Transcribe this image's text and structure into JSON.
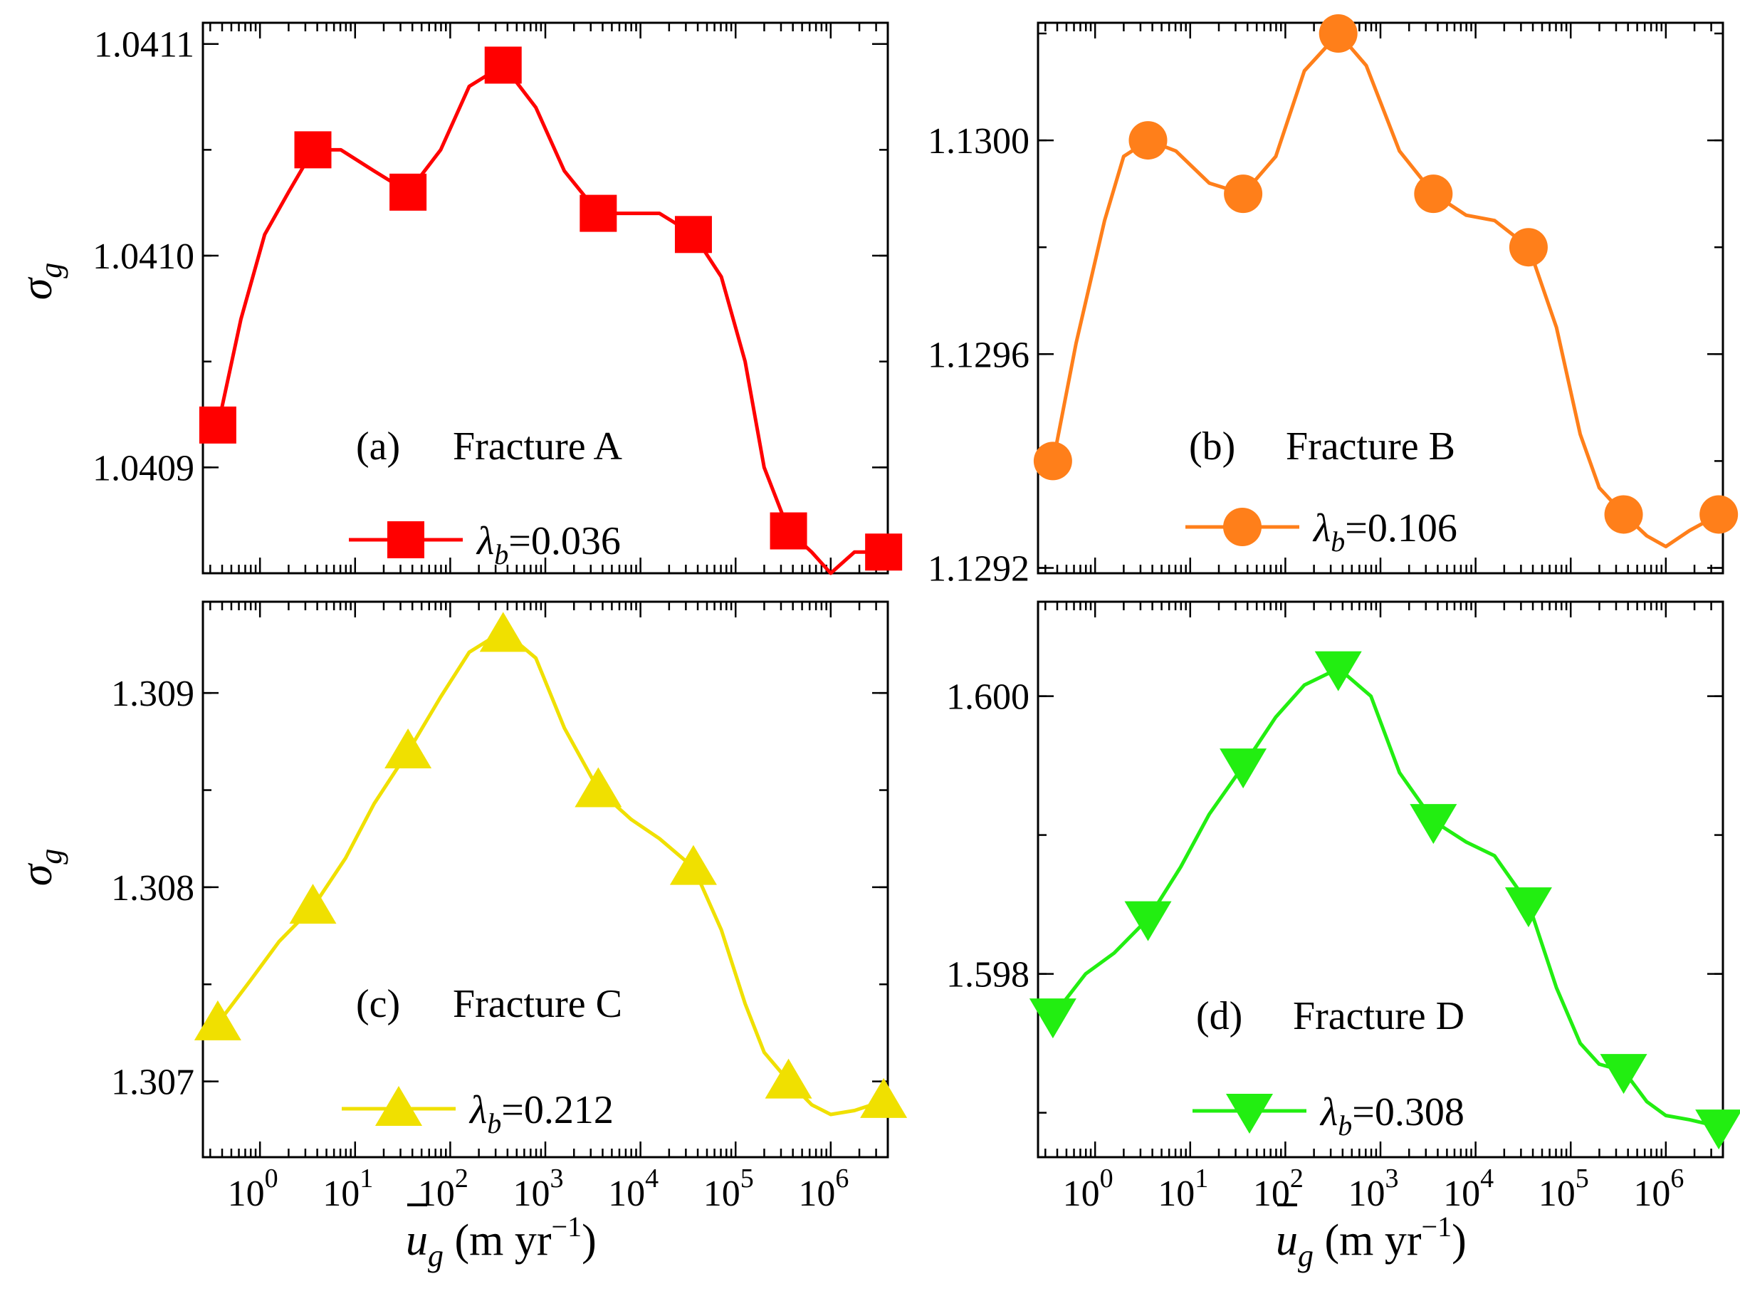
{
  "figure": {
    "shared_xlabel": {
      "prefix": "u",
      "subscript": "g",
      "unit": " (m yr",
      "exponent": "−1",
      "suffix": ")"
    },
    "shared_ylabel": {
      "symbol": "σ",
      "subscript": "g"
    }
  },
  "chart_data": [
    {
      "type": "line",
      "panel": "a",
      "panel_label": "(a)",
      "fracture": "Fracture A",
      "legend_value": "=0.036",
      "color": "#ff0000",
      "marker": "square",
      "xscale": "log",
      "xlim_exp": [
        -0.6,
        6.6
      ],
      "ylim": [
        1.04085,
        1.04111
      ],
      "yticks": [
        "1.0409",
        "1.0410",
        "1.0411"
      ],
      "ytick_values": [
        1.0409,
        1.041,
        1.0411
      ],
      "xlabel": "u_g (m yr^-1)",
      "ylabel": "σ_g",
      "x": [
        0.36,
        3.6,
        36,
        360,
        3600,
        36000,
        360000,
        3600000
      ],
      "y": [
        1.04092,
        1.04105,
        1.04103,
        1.04109,
        1.04102,
        1.04101,
        1.04087,
        1.04086
      ],
      "curve": [
        [
          -0.44,
          1.04092
        ],
        [
          -0.2,
          1.04097
        ],
        [
          0.05,
          1.04101
        ],
        [
          0.3,
          1.04103
        ],
        [
          0.56,
          1.04105
        ],
        [
          0.85,
          1.04105
        ],
        [
          1.2,
          1.04104
        ],
        [
          1.56,
          1.04103
        ],
        [
          1.9,
          1.04105
        ],
        [
          2.2,
          1.04108
        ],
        [
          2.56,
          1.04109
        ],
        [
          2.9,
          1.04107
        ],
        [
          3.2,
          1.04104
        ],
        [
          3.56,
          1.04102
        ],
        [
          3.9,
          1.04102
        ],
        [
          4.2,
          1.04102
        ],
        [
          4.56,
          1.04101
        ],
        [
          4.85,
          1.04099
        ],
        [
          5.1,
          1.04095
        ],
        [
          5.3,
          1.0409
        ],
        [
          5.56,
          1.04087
        ],
        [
          5.8,
          1.04086
        ],
        [
          6.0,
          1.04085
        ],
        [
          6.25,
          1.04086
        ],
        [
          6.56,
          1.04086
        ]
      ]
    },
    {
      "type": "line",
      "panel": "b",
      "panel_label": "(b)",
      "fracture": "Fracture B",
      "legend_value": "=0.106",
      "color": "#ff7f1a",
      "marker": "circle",
      "xscale": "log",
      "xlim_exp": [
        -0.6,
        6.6
      ],
      "ylim": [
        1.12919,
        1.13022
      ],
      "yticks": [
        "1.1292",
        "1.1296",
        "1.1300"
      ],
      "ytick_values": [
        1.1292,
        1.1296,
        1.13
      ],
      "xlabel": "u_g (m yr^-1)",
      "ylabel": "σ_g",
      "x": [
        0.36,
        3.6,
        36,
        360,
        3600,
        36000,
        360000,
        3600000
      ],
      "y": [
        1.1294,
        1.13,
        1.1299,
        1.1302,
        1.1299,
        1.1298,
        1.1293,
        1.1293
      ],
      "curve": [
        [
          -0.44,
          1.1294
        ],
        [
          -0.2,
          1.12962
        ],
        [
          0.1,
          1.12985
        ],
        [
          0.3,
          1.12997
        ],
        [
          0.56,
          1.13
        ],
        [
          0.85,
          1.12998
        ],
        [
          1.2,
          1.12992
        ],
        [
          1.56,
          1.1299
        ],
        [
          1.9,
          1.12997
        ],
        [
          2.2,
          1.13013
        ],
        [
          2.56,
          1.1302
        ],
        [
          2.85,
          1.13014
        ],
        [
          3.2,
          1.12998
        ],
        [
          3.56,
          1.1299
        ],
        [
          3.9,
          1.12986
        ],
        [
          4.2,
          1.12985
        ],
        [
          4.56,
          1.1298
        ],
        [
          4.85,
          1.12965
        ],
        [
          5.1,
          1.12945
        ],
        [
          5.3,
          1.12935
        ],
        [
          5.56,
          1.1293
        ],
        [
          5.8,
          1.12926
        ],
        [
          6.0,
          1.12924
        ],
        [
          6.25,
          1.12927
        ],
        [
          6.56,
          1.1293
        ]
      ]
    },
    {
      "type": "line",
      "panel": "c",
      "panel_label": "(c)",
      "fracture": "Fracture C",
      "legend_value": "=0.212",
      "color": "#f0e000",
      "marker": "triangle-up",
      "xscale": "log",
      "xlim_exp": [
        -0.6,
        6.6
      ],
      "ylim": [
        1.30661,
        1.30947
      ],
      "yticks": [
        "1.307",
        "1.308",
        "1.309"
      ],
      "ytick_values": [
        1.307,
        1.308,
        1.309
      ],
      "xlabel": "u_g (m yr^-1)",
      "ylabel": "σ_g",
      "x": [
        0.36,
        3.6,
        36,
        360,
        3600,
        36000,
        360000,
        3600000
      ],
      "y": [
        1.3073,
        1.3079,
        1.3087,
        1.3093,
        1.3085,
        1.3081,
        1.307,
        1.3069
      ],
      "curve": [
        [
          -0.44,
          1.3073
        ],
        [
          -0.1,
          1.30752
        ],
        [
          0.2,
          1.30772
        ],
        [
          0.56,
          1.3079
        ],
        [
          0.9,
          1.30815
        ],
        [
          1.2,
          1.30843
        ],
        [
          1.56,
          1.3087
        ],
        [
          1.9,
          1.30898
        ],
        [
          2.2,
          1.30921
        ],
        [
          2.56,
          1.30932
        ],
        [
          2.9,
          1.30918
        ],
        [
          3.2,
          1.30882
        ],
        [
          3.56,
          1.3085
        ],
        [
          3.9,
          1.30835
        ],
        [
          4.2,
          1.30825
        ],
        [
          4.56,
          1.3081
        ],
        [
          4.85,
          1.30778
        ],
        [
          5.1,
          1.3074
        ],
        [
          5.3,
          1.30715
        ],
        [
          5.56,
          1.307
        ],
        [
          5.8,
          1.30688
        ],
        [
          6.0,
          1.30683
        ],
        [
          6.25,
          1.30685
        ],
        [
          6.56,
          1.3069
        ]
      ]
    },
    {
      "type": "line",
      "panel": "d",
      "panel_label": "(d)",
      "fracture": "Fracture D",
      "legend_value": "=0.308",
      "color": "#22ee11",
      "marker": "triangle-down",
      "xscale": "log",
      "xlim_exp": [
        -0.6,
        6.6
      ],
      "ylim": [
        1.59668,
        1.60068
      ],
      "yticks": [
        "1.598",
        "1.600"
      ],
      "ytick_values": [
        1.598,
        1.6
      ],
      "xlabel": "u_g (m yr^-1)",
      "ylabel": "σ_g",
      "x": [
        0.36,
        3.6,
        36,
        360,
        3600,
        36000,
        360000,
        3600000
      ],
      "y": [
        1.5977,
        1.5984,
        1.5995,
        1.6002,
        1.5991,
        1.5985,
        1.5973,
        1.5969
      ],
      "curve": [
        [
          -0.44,
          1.5977
        ],
        [
          -0.1,
          1.598
        ],
        [
          0.2,
          1.59815
        ],
        [
          0.56,
          1.5984
        ],
        [
          0.9,
          1.59877
        ],
        [
          1.2,
          1.59915
        ],
        [
          1.56,
          1.5995
        ],
        [
          1.9,
          1.59985
        ],
        [
          2.2,
          1.60008
        ],
        [
          2.56,
          1.6002
        ],
        [
          2.9,
          1.6
        ],
        [
          3.2,
          1.59945
        ],
        [
          3.56,
          1.5991
        ],
        [
          3.9,
          1.59895
        ],
        [
          4.2,
          1.59885
        ],
        [
          4.56,
          1.5985
        ],
        [
          4.85,
          1.5979
        ],
        [
          5.1,
          1.5975
        ],
        [
          5.3,
          1.59735
        ],
        [
          5.56,
          1.5973
        ],
        [
          5.8,
          1.59708
        ],
        [
          6.0,
          1.59698
        ],
        [
          6.25,
          1.59695
        ],
        [
          6.56,
          1.5969
        ]
      ]
    }
  ]
}
